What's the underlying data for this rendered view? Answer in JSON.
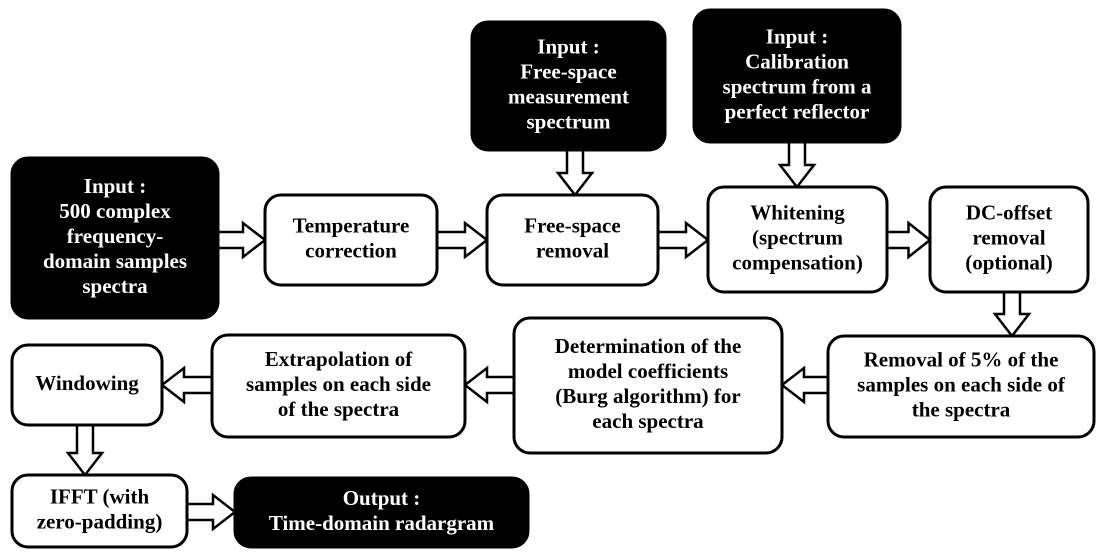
{
  "nodes": [
    {
      "lines": [
        "Input :",
        "500 complex",
        "frequency-",
        "domain samples",
        "spectra"
      ]
    },
    {
      "lines": [
        "Temperature",
        "correction"
      ]
    },
    {
      "lines": [
        "Free-space",
        "removal"
      ]
    },
    {
      "lines": [
        "Input :",
        "Free-space",
        "measurement",
        "spectrum"
      ]
    },
    {
      "lines": [
        "Input :",
        "Calibration",
        "spectrum from a",
        "perfect reflector"
      ]
    },
    {
      "lines": [
        "Whitening",
        "(spectrum",
        "compensation)"
      ]
    },
    {
      "lines": [
        "DC-offset",
        "removal",
        "(optional)"
      ]
    },
    {
      "lines": [
        "Removal of 5% of the",
        "samples on each side of",
        "the spectra"
      ]
    },
    {
      "lines": [
        "Determination of the",
        "model coefficients",
        "(Burg algorithm) for",
        "each spectra"
      ]
    },
    {
      "lines": [
        "Extrapolation of",
        "samples on each side",
        "of the spectra"
      ]
    },
    {
      "lines": [
        "Windowing"
      ]
    },
    {
      "lines": [
        "IFFT (with",
        "zero-padding)"
      ]
    },
    {
      "lines": [
        "Output :",
        "Time-domain radargram"
      ]
    }
  ]
}
